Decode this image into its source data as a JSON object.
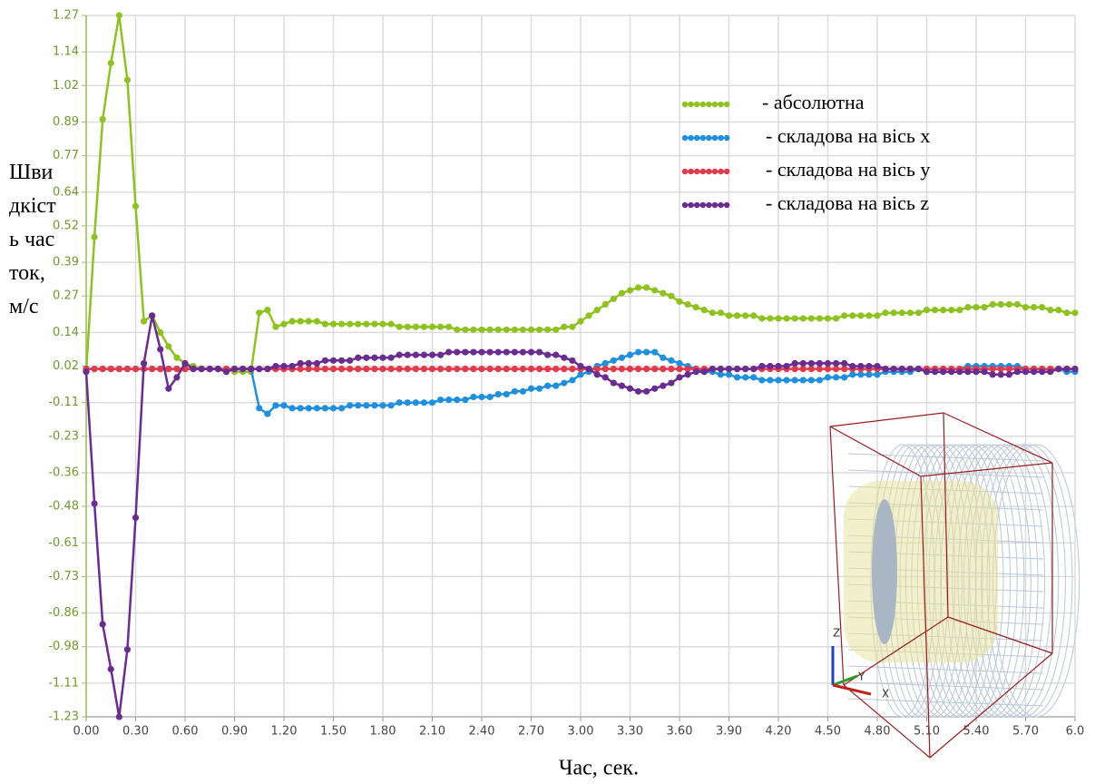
{
  "chart_data": {
    "type": "line",
    "y_label": "Швидкість часток, м/с",
    "x_label": "Час, сек.",
    "x": [
      0,
      0.05,
      0.1,
      0.15,
      0.2,
      0.25,
      0.3,
      0.35,
      0.4,
      0.45,
      0.5,
      0.55,
      0.6,
      0.65,
      0.7,
      0.75,
      0.8,
      0.85,
      0.9,
      0.95,
      1,
      1.05,
      1.1,
      1.15,
      1.2,
      1.25,
      1.3,
      1.35,
      1.4,
      1.45,
      1.5,
      1.55,
      1.6,
      1.65,
      1.7,
      1.75,
      1.8,
      1.85,
      1.9,
      1.95,
      2,
      2.05,
      2.1,
      2.15,
      2.2,
      2.25,
      2.3,
      2.35,
      2.4,
      2.45,
      2.5,
      2.55,
      2.6,
      2.65,
      2.7,
      2.75,
      2.8,
      2.85,
      2.9,
      2.95,
      3,
      3.05,
      3.1,
      3.15,
      3.2,
      3.25,
      3.3,
      3.35,
      3.4,
      3.45,
      3.5,
      3.55,
      3.6,
      3.65,
      3.7,
      3.75,
      3.8,
      3.85,
      3.9,
      3.95,
      4,
      4.05,
      4.1,
      4.15,
      4.2,
      4.25,
      4.3,
      4.35,
      4.4,
      4.45,
      4.5,
      4.55,
      4.6,
      4.65,
      4.7,
      4.75,
      4.8,
      4.85,
      4.9,
      4.95,
      5,
      5.05,
      5.1,
      5.15,
      5.2,
      5.25,
      5.3,
      5.35,
      5.4,
      5.45,
      5.5,
      5.55,
      5.6,
      5.65,
      5.7,
      5.75,
      5.8,
      5.85,
      5.9,
      5.95,
      6
    ],
    "series": [
      {
        "name": "- абсолютна",
        "color": "#8dc21f",
        "values": [
          0,
          0.48,
          0.9,
          1.1,
          1.27,
          1.04,
          0.59,
          0.18,
          0.2,
          0.14,
          0.09,
          0.05,
          0.03,
          0.02,
          0.01,
          0.01,
          0.01,
          0.01,
          0,
          0,
          0,
          0.21,
          0.22,
          0.16,
          0.17,
          0.18,
          0.18,
          0.18,
          0.18,
          0.17,
          0.17,
          0.17,
          0.17,
          0.17,
          0.17,
          0.17,
          0.17,
          0.17,
          0.16,
          0.16,
          0.16,
          0.16,
          0.16,
          0.16,
          0.16,
          0.15,
          0.15,
          0.15,
          0.15,
          0.15,
          0.15,
          0.15,
          0.15,
          0.15,
          0.15,
          0.15,
          0.15,
          0.15,
          0.16,
          0.16,
          0.18,
          0.2,
          0.22,
          0.24,
          0.26,
          0.28,
          0.29,
          0.3,
          0.3,
          0.29,
          0.28,
          0.27,
          0.25,
          0.24,
          0.23,
          0.22,
          0.21,
          0.21,
          0.2,
          0.2,
          0.2,
          0.2,
          0.19,
          0.19,
          0.19,
          0.19,
          0.19,
          0.19,
          0.19,
          0.19,
          0.19,
          0.19,
          0.2,
          0.2,
          0.2,
          0.2,
          0.2,
          0.21,
          0.21,
          0.21,
          0.21,
          0.21,
          0.22,
          0.22,
          0.22,
          0.22,
          0.22,
          0.23,
          0.23,
          0.23,
          0.24,
          0.24,
          0.24,
          0.24,
          0.23,
          0.23,
          0.23,
          0.22,
          0.22,
          0.21,
          0.21
        ]
      },
      {
        "name": "- складова на вісь x",
        "color": "#1f8fe0",
        "values": [
          0.01,
          0.01,
          0.01,
          0.01,
          0.01,
          0.01,
          0.01,
          0.01,
          0.01,
          0.01,
          0.01,
          0.01,
          0.01,
          0.01,
          0.01,
          0.01,
          0.01,
          0.01,
          0.01,
          0.01,
          0.01,
          -0.13,
          -0.15,
          -0.12,
          -0.12,
          -0.13,
          -0.13,
          -0.13,
          -0.13,
          -0.13,
          -0.13,
          -0.13,
          -0.12,
          -0.12,
          -0.12,
          -0.12,
          -0.12,
          -0.12,
          -0.11,
          -0.11,
          -0.11,
          -0.11,
          -0.11,
          -0.1,
          -0.1,
          -0.1,
          -0.1,
          -0.09,
          -0.09,
          -0.09,
          -0.08,
          -0.08,
          -0.07,
          -0.07,
          -0.06,
          -0.06,
          -0.05,
          -0.05,
          -0.04,
          -0.03,
          -0.01,
          0,
          0.02,
          0.03,
          0.04,
          0.05,
          0.06,
          0.07,
          0.07,
          0.07,
          0.05,
          0.04,
          0.03,
          0.02,
          0.01,
          0,
          0,
          -0.01,
          -0.01,
          -0.02,
          -0.02,
          -0.02,
          -0.03,
          -0.03,
          -0.03,
          -0.03,
          -0.03,
          -0.03,
          -0.03,
          -0.03,
          -0.02,
          -0.02,
          -0.02,
          -0.01,
          -0.01,
          -0.01,
          -0.01,
          0,
          0,
          0,
          0,
          0.01,
          0.01,
          0.01,
          0.01,
          0.01,
          0.01,
          0.02,
          0.02,
          0.02,
          0.02,
          0.02,
          0.02,
          0.02,
          0.01,
          0.01,
          0.01,
          0.01,
          0.01,
          0,
          0
        ]
      },
      {
        "name": "- складова на вісь y",
        "color": "#e2394b",
        "values": [
          0.01,
          0.01,
          0.01,
          0.01,
          0.01,
          0.01,
          0.01,
          0.01,
          0.01,
          0.01,
          0.01,
          0.01,
          0.01,
          0.01,
          0.01,
          0.01,
          0.01,
          0.01,
          0.01,
          0.01,
          0.01,
          0.01,
          0.01,
          0.01,
          0.01,
          0.01,
          0.01,
          0.01,
          0.01,
          0.01,
          0.01,
          0.01,
          0.01,
          0.01,
          0.01,
          0.01,
          0.01,
          0.01,
          0.01,
          0.01,
          0.01,
          0.01,
          0.01,
          0.01,
          0.01,
          0.01,
          0.01,
          0.01,
          0.01,
          0.01,
          0.01,
          0.01,
          0.01,
          0.01,
          0.01,
          0.01,
          0.01,
          0.01,
          0.01,
          0.01,
          0.01,
          0.01,
          0.01,
          0.01,
          0.01,
          0.01,
          0.01,
          0.01,
          0.01,
          0.01,
          0.01,
          0.01,
          0.01,
          0.01,
          0.01,
          0.01,
          0.01,
          0.01,
          0.01,
          0.01,
          0.01,
          0.01,
          0.01,
          0.01,
          0.01,
          0.01,
          0.01,
          0.01,
          0.01,
          0.01,
          0.01,
          0.01,
          0.01,
          0.01,
          0.01,
          0.01,
          0.01,
          0.01,
          0.01,
          0.01,
          0.01,
          0.01,
          0.01,
          0.01,
          0.01,
          0.01,
          0.01,
          0.01,
          0.01,
          0.01,
          0.01,
          0.01,
          0.01,
          0.01,
          0.01,
          0.01,
          0.01,
          0.01,
          0.01,
          0.01,
          0.01
        ]
      },
      {
        "name": "- складова на вісь z",
        "color": "#6a2c91",
        "values": [
          0,
          -0.47,
          -0.9,
          -1.06,
          -1.23,
          -0.99,
          -0.52,
          0.03,
          0.2,
          0.08,
          -0.06,
          -0.02,
          0.03,
          0.01,
          0.01,
          0.01,
          0.01,
          0,
          0.01,
          0.01,
          0.01,
          0.01,
          0.01,
          0.02,
          0.02,
          0.02,
          0.03,
          0.03,
          0.03,
          0.04,
          0.04,
          0.04,
          0.04,
          0.05,
          0.05,
          0.05,
          0.05,
          0.05,
          0.06,
          0.06,
          0.06,
          0.06,
          0.06,
          0.06,
          0.07,
          0.07,
          0.07,
          0.07,
          0.07,
          0.07,
          0.07,
          0.07,
          0.07,
          0.07,
          0.07,
          0.07,
          0.06,
          0.06,
          0.05,
          0.04,
          0.02,
          0.01,
          -0.01,
          -0.02,
          -0.04,
          -0.05,
          -0.06,
          -0.07,
          -0.07,
          -0.06,
          -0.05,
          -0.04,
          -0.02,
          -0.01,
          0,
          0,
          0.01,
          0.01,
          0.01,
          0.01,
          0.01,
          0.01,
          0.02,
          0.02,
          0.02,
          0.02,
          0.03,
          0.03,
          0.03,
          0.03,
          0.03,
          0.03,
          0.03,
          0.02,
          0.02,
          0.02,
          0.02,
          0.01,
          0.01,
          0.01,
          0.01,
          0.01,
          0,
          0,
          0,
          0,
          0,
          0,
          0,
          0,
          -0.01,
          -0.01,
          -0.01,
          0,
          0,
          0,
          0,
          0,
          0.01,
          0.01,
          0.01
        ]
      }
    ],
    "xlim": [
      0,
      6
    ],
    "ylim": [
      -1.23,
      1.27
    ],
    "xticks": [
      {
        "value": 0,
        "label": "0.00"
      },
      {
        "value": 0.3,
        "label": "0.30"
      },
      {
        "value": 0.6,
        "label": "0.60"
      },
      {
        "value": 0.9,
        "label": "0.90"
      },
      {
        "value": 1.2,
        "label": "1.20"
      },
      {
        "value": 1.5,
        "label": "1.50"
      },
      {
        "value": 1.8,
        "label": "1.80"
      },
      {
        "value": 2.1,
        "label": "2.10"
      },
      {
        "value": 2.4,
        "label": "2.40"
      },
      {
        "value": 2.7,
        "label": "2.70"
      },
      {
        "value": 3,
        "label": "3.00"
      },
      {
        "value": 3.3,
        "label": "3.30"
      },
      {
        "value": 3.6,
        "label": "3.60"
      },
      {
        "value": 3.9,
        "label": "3.90"
      },
      {
        "value": 4.2,
        "label": "4.20"
      },
      {
        "value": 4.5,
        "label": "4.50"
      },
      {
        "value": 4.8,
        "label": "4.80"
      },
      {
        "value": 5.1,
        "label": "5.10"
      },
      {
        "value": 5.4,
        "label": "5.40"
      },
      {
        "value": 5.7,
        "label": "5.70"
      },
      {
        "value": 6,
        "label": "6.0"
      }
    ],
    "yticks": [
      1.27,
      1.14,
      1.02,
      0.89,
      0.77,
      0.64,
      0.52,
      0.39,
      0.27,
      0.14,
      0.02,
      -0.11,
      -0.23,
      -0.36,
      -0.48,
      -0.61,
      -0.73,
      -0.86,
      -0.98,
      -1.11,
      -1.23
    ],
    "grid": true,
    "legend": "upper right",
    "inset_axes": [
      "Z",
      "Y",
      "X"
    ]
  }
}
